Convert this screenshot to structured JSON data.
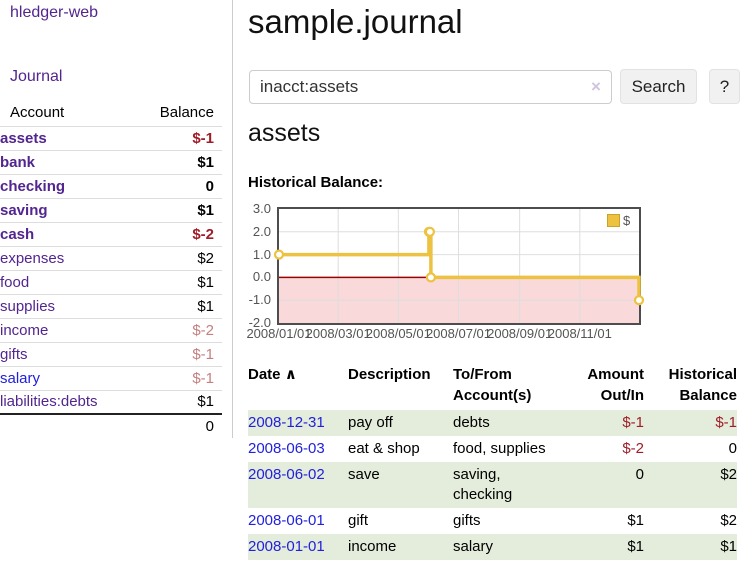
{
  "colors": {
    "purple_link": "#52258f",
    "blue_link": "#2121dd",
    "neg_strong": "#a01c28",
    "neg_soft": "#c48080",
    "row_green": "#e4ecdb",
    "divider": "#cccccc"
  },
  "sidebar": {
    "brand": "hledger-web",
    "journal_link": "Journal",
    "accounts": {
      "headers": [
        "Account",
        "Balance"
      ],
      "rows": [
        {
          "name": "assets",
          "indent": 1,
          "emphasis": true,
          "balance": "$-1",
          "negative": "strong"
        },
        {
          "name": "bank",
          "indent": 2,
          "emphasis": true,
          "balance": "$1"
        },
        {
          "name": "checking",
          "indent": 3,
          "emphasis": true,
          "balance": "0"
        },
        {
          "name": "saving",
          "indent": 3,
          "emphasis": true,
          "balance": "$1"
        },
        {
          "name": "cash",
          "indent": 2,
          "emphasis": true,
          "balance": "$-2",
          "negative": "strong"
        },
        {
          "name": "expenses",
          "indent": 1,
          "balance": "$2"
        },
        {
          "name": "food",
          "indent": 2,
          "balance": "$1"
        },
        {
          "name": "supplies",
          "indent": 2,
          "balance": "$1"
        },
        {
          "name": "income",
          "indent": 1,
          "balance": "$-2",
          "negative": "soft"
        },
        {
          "name": "gifts",
          "indent": 2,
          "balance": "$-1",
          "negative": "soft"
        },
        {
          "name": "salary",
          "indent": 2,
          "balance": "$-1",
          "negative": "soft",
          "unvisited": true
        },
        {
          "name": "liabilities:debts",
          "indent": 1,
          "balance": "$1"
        }
      ],
      "total": "0"
    }
  },
  "main": {
    "title": "sample.journal",
    "search": {
      "value": "inacct:assets",
      "clear_icon": "×",
      "button_label": "Search",
      "help_label": "?"
    },
    "account_heading": "assets",
    "chart_label": "Historical Balance:"
  },
  "chart_data": {
    "type": "line",
    "step": true,
    "title": "Historical Balance",
    "legend": {
      "label": "$",
      "position": "top-right"
    },
    "xlim": [
      "2008-01-01",
      "2008-12-31"
    ],
    "ylim": [
      -2,
      3
    ],
    "y_ticks": [
      3,
      2,
      1,
      0,
      -1,
      -2
    ],
    "y_tick_labels": [
      "3.0",
      "2.0",
      "1.0",
      "0.0",
      "-1.0",
      "-2.0"
    ],
    "x_tick_dates": [
      "2008-01-01",
      "2008-03-01",
      "2008-05-01",
      "2008-07-01",
      "2008-09-01",
      "2008-11-01"
    ],
    "x_tick_labels": [
      "2008/01/01",
      "2008/03/01",
      "2008/05/01",
      "2008/07/01",
      "2008/09/01",
      "2008/11/01"
    ],
    "series": [
      {
        "name": "$",
        "color": "#edc240",
        "marker_fill": "#ffffff",
        "points": [
          [
            "2008-01-01",
            1
          ],
          [
            "2008-06-01",
            2
          ],
          [
            "2008-06-02",
            2
          ],
          [
            "2008-06-03",
            0
          ],
          [
            "2008-12-31",
            -1
          ]
        ]
      }
    ],
    "negative_region_color": "#f9d9d9",
    "zero_line_color": "#990000",
    "grid_color": "#dedede",
    "border_color": "#4d4d4d",
    "tick_label_color": "#545454"
  },
  "register": {
    "headers": [
      {
        "label": "Date",
        "sort_icon": "∧"
      },
      {
        "label": "Description"
      },
      {
        "label": "To/From\nAccount(s)"
      },
      {
        "label": "Amount\nOut/In"
      },
      {
        "label": "Historical\nBalance"
      }
    ],
    "rows": [
      {
        "date": "2008-12-31",
        "description": "pay off",
        "accounts": "debts",
        "amount": "$-1",
        "balance": "$-1"
      },
      {
        "date": "2008-06-03",
        "description": "eat & shop",
        "accounts": "food, supplies",
        "amount": "$-2",
        "balance": "0"
      },
      {
        "date": "2008-06-02",
        "description": "save",
        "accounts": "saving,\nchecking",
        "amount": "0",
        "balance": "$2"
      },
      {
        "date": "2008-06-01",
        "description": "gift",
        "accounts": "gifts",
        "amount": "$1",
        "balance": "$2"
      },
      {
        "date": "2008-01-01",
        "description": "income",
        "accounts": "salary",
        "amount": "$1",
        "balance": "$1"
      }
    ]
  }
}
